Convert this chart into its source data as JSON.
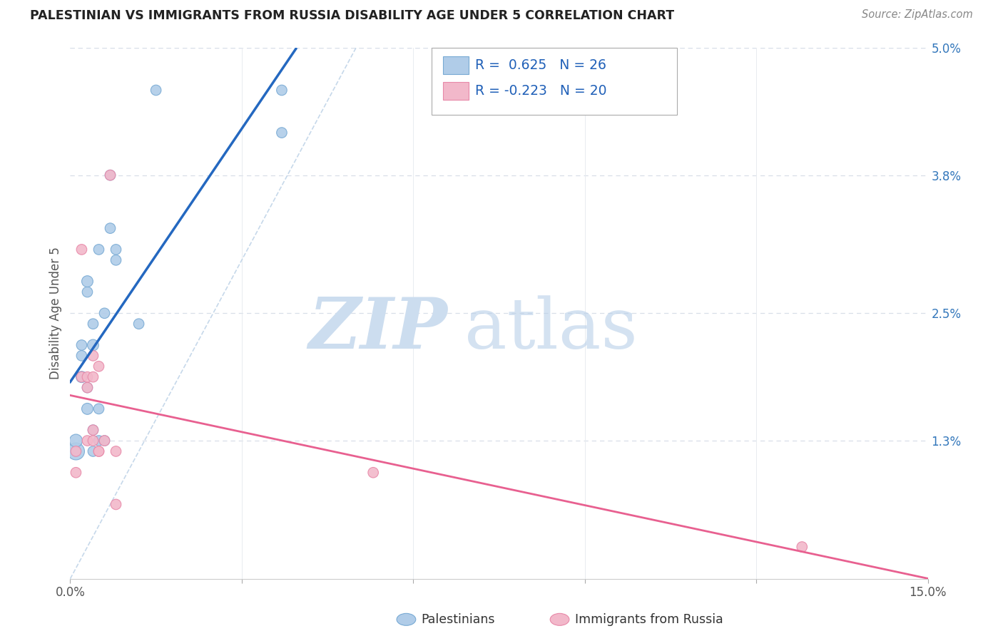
{
  "title": "PALESTINIAN VS IMMIGRANTS FROM RUSSIA DISABILITY AGE UNDER 5 CORRELATION CHART",
  "source": "Source: ZipAtlas.com",
  "ylabel": "Disability Age Under 5",
  "xlim": [
    0.0,
    0.15
  ],
  "ylim": [
    0.0,
    0.05
  ],
  "ytick_positions": [
    0.013,
    0.025,
    0.038,
    0.05
  ],
  "ytick_labels": [
    "1.3%",
    "2.5%",
    "3.8%",
    "5.0%"
  ],
  "xtick_positions": [
    0.0,
    0.03,
    0.06,
    0.09,
    0.12,
    0.15
  ],
  "xtick_labels": [
    "0.0%",
    "",
    "",
    "",
    "",
    "15.0%"
  ],
  "blue_fill": "#b0cce8",
  "blue_edge": "#78aad4",
  "pink_fill": "#f2b8ca",
  "pink_edge": "#e888a8",
  "blue_line": "#2468c0",
  "pink_line": "#e86090",
  "dash_line_color": "#c0d4e8",
  "grid_h_color": "#d8dfe8",
  "grid_v_color": "#e8ecf0",
  "r_blue": 0.625,
  "n_blue": 26,
  "r_pink": -0.223,
  "n_pink": 20,
  "label_blue": "Palestinians",
  "label_pink": "Immigrants from Russia",
  "watermark_zip": "ZIP",
  "watermark_atlas": "atlas",
  "blue_points_x": [
    0.001,
    0.001,
    0.002,
    0.002,
    0.002,
    0.003,
    0.003,
    0.003,
    0.003,
    0.004,
    0.004,
    0.004,
    0.004,
    0.005,
    0.005,
    0.005,
    0.006,
    0.006,
    0.007,
    0.007,
    0.008,
    0.008,
    0.012,
    0.015,
    0.037,
    0.037
  ],
  "blue_points_y": [
    0.012,
    0.013,
    0.019,
    0.021,
    0.022,
    0.016,
    0.018,
    0.027,
    0.028,
    0.012,
    0.014,
    0.022,
    0.024,
    0.013,
    0.016,
    0.031,
    0.013,
    0.025,
    0.033,
    0.038,
    0.03,
    0.031,
    0.024,
    0.046,
    0.042,
    0.046
  ],
  "blue_sizes": [
    300,
    170,
    130,
    110,
    110,
    130,
    110,
    110,
    130,
    110,
    110,
    130,
    110,
    110,
    110,
    110,
    110,
    110,
    110,
    110,
    110,
    110,
    110,
    110,
    110,
    110
  ],
  "pink_points_x": [
    0.001,
    0.001,
    0.002,
    0.002,
    0.003,
    0.003,
    0.003,
    0.004,
    0.004,
    0.004,
    0.004,
    0.005,
    0.005,
    0.005,
    0.006,
    0.007,
    0.008,
    0.008,
    0.053,
    0.128
  ],
  "pink_points_y": [
    0.012,
    0.01,
    0.019,
    0.031,
    0.013,
    0.018,
    0.019,
    0.013,
    0.014,
    0.019,
    0.021,
    0.012,
    0.012,
    0.02,
    0.013,
    0.038,
    0.012,
    0.007,
    0.01,
    0.003
  ],
  "pink_sizes": [
    110,
    110,
    110,
    110,
    110,
    110,
    110,
    110,
    110,
    110,
    110,
    110,
    110,
    110,
    110,
    110,
    110,
    110,
    110,
    110
  ]
}
